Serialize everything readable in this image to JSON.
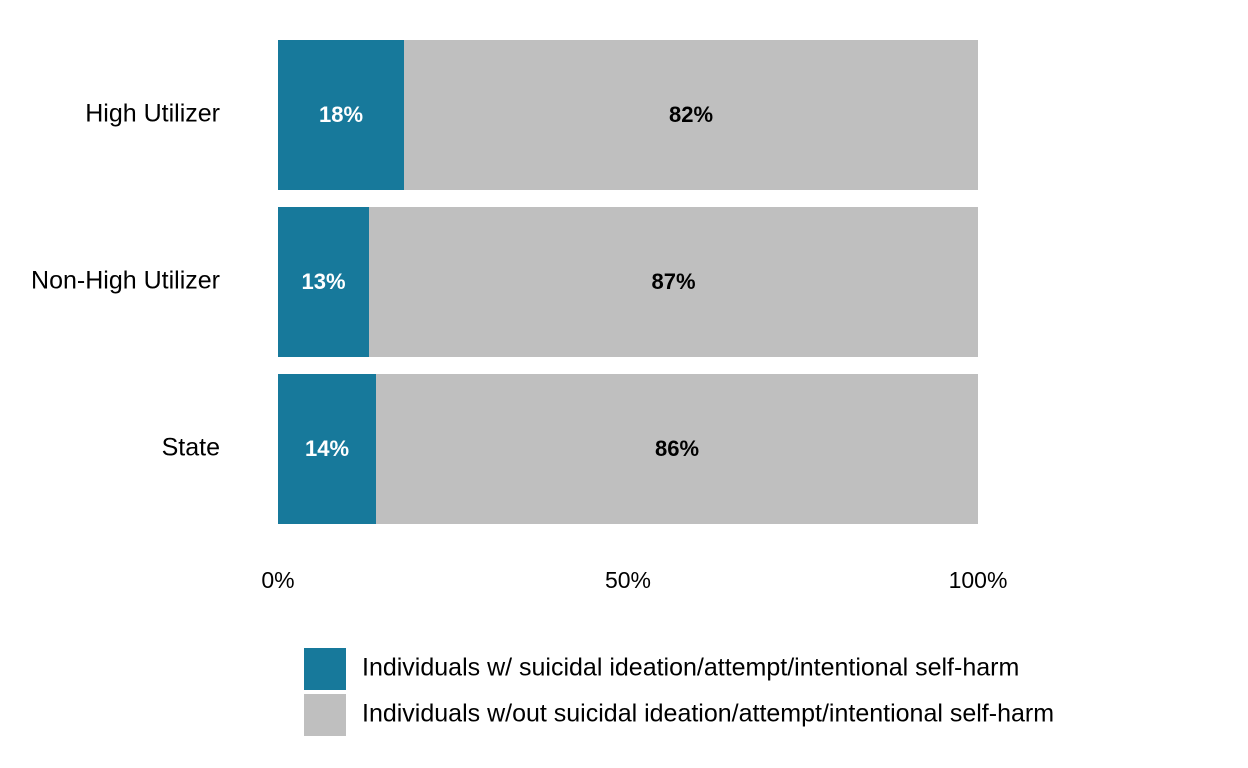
{
  "chart_data": {
    "type": "bar",
    "orientation": "horizontal",
    "stacked": true,
    "percent_stacked": true,
    "categories": [
      "High Utilizer",
      "Non-High Utilizer",
      "State"
    ],
    "series": [
      {
        "name": "Individuals w/ suicidal ideation/attempt/intentional self-harm",
        "values": [
          18,
          13,
          14
        ],
        "labels": [
          "18%",
          "13%",
          "14%"
        ],
        "color": "#17799b",
        "label_color": "#ffffff"
      },
      {
        "name": "Individuals w/out suicidal ideation/attempt/intentional self-harm",
        "values": [
          82,
          87,
          86
        ],
        "labels": [
          "82%",
          "87%",
          "86%"
        ],
        "color": "#bfbfbf",
        "label_color": "#000000"
      }
    ],
    "x_ticks": [
      0,
      50,
      100
    ],
    "x_tick_labels": [
      "0%",
      "50%",
      "100%"
    ],
    "xlim": [
      0,
      100
    ],
    "grid": false,
    "legend_position": "bottom"
  }
}
